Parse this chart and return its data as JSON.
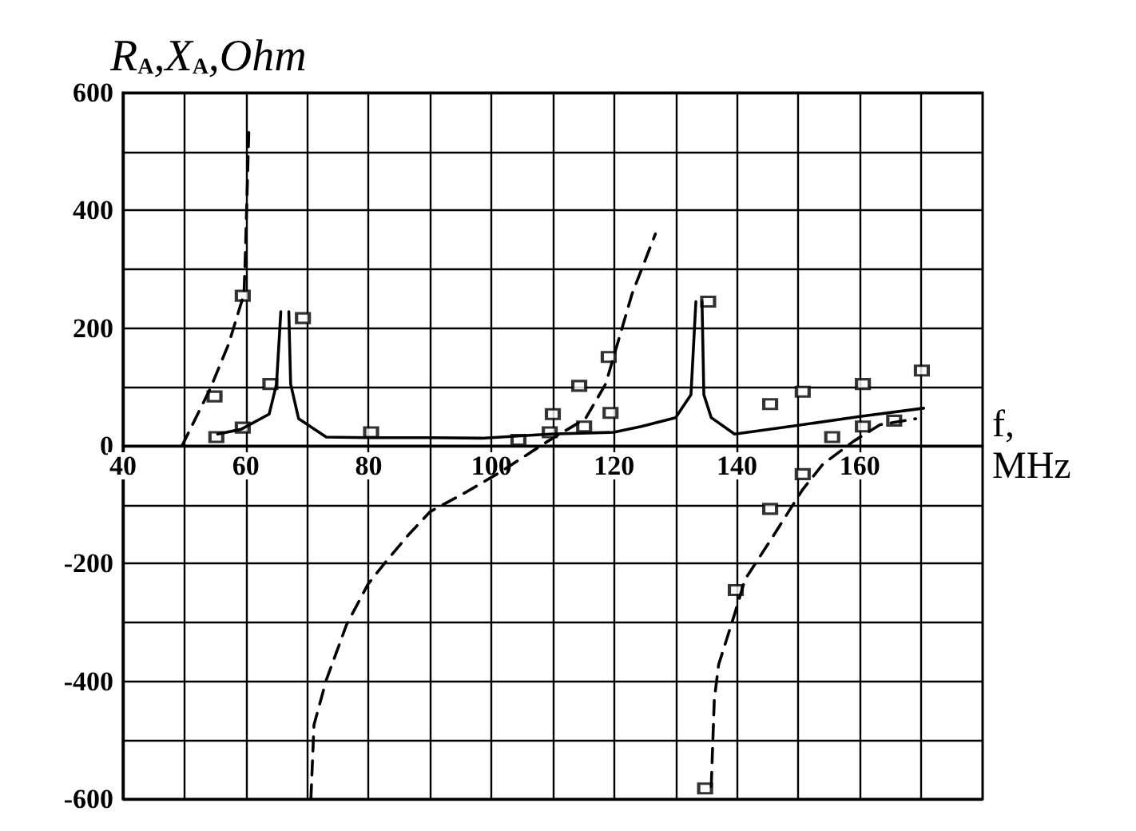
{
  "chart_data": {
    "type": "line",
    "xlabel": "f, MHz",
    "ylabel": "R$_{A}$,X$_{A}$,Ohm",
    "xlim": [
      40,
      180
    ],
    "xticks": [
      40,
      {
        "value": 50,
        "label": null
      },
      60,
      {
        "value": 70,
        "label": null
      },
      80,
      {
        "value": 90,
        "label": null
      },
      100,
      {
        "value": 110,
        "label": null
      },
      120,
      {
        "value": 130,
        "label": null
      },
      140,
      {
        "value": 150,
        "label": null
      },
      160,
      {
        "value": 170,
        "label": null
      }
    ],
    "ylim": [
      -600,
      600
    ],
    "yticks": [
      -600,
      {
        "value": -500,
        "label": null
      },
      -400,
      {
        "value": -300,
        "label": null
      },
      -200,
      {
        "value": -100,
        "label": null
      },
      0,
      {
        "value": 100,
        "label": null
      },
      200,
      {
        "value": 300,
        "label": null
      },
      400,
      {
        "value": 500,
        "label": null
      },
      600
    ],
    "grid": true,
    "series": [
      {
        "type": "line",
        "color": "#000000",
        "line_style": "solid",
        "marker": "none",
        "x": [
          55.4,
          59.2,
          63.8,
          65.0,
          65.7,
          66.3,
          67.0,
          67.3,
          68.6,
          73.1,
          80,
          90,
          98.4,
          109.5,
          119.9,
          124.4,
          130.0,
          132.5,
          133.3,
          133.8,
          134.3,
          134.6,
          135.8,
          139.6,
          150,
          160,
          170.4
        ],
        "values": [
          20,
          28,
          54,
          105,
          228,
          null,
          228,
          105,
          46,
          15,
          14,
          14,
          13,
          20,
          23,
          33,
          48,
          87,
          245,
          null,
          245,
          87,
          48,
          20,
          35,
          50,
          64
        ]
      },
      {
        "type": "line",
        "color": "#000000",
        "line_style": "dashed",
        "marker": "none",
        "x": [
          49.6,
          54.2,
          57.2,
          59.7,
          59.9,
          60.5,
          65.0,
          70.6,
          71.1,
          73.1,
          76.4,
          79.9,
          82.4,
          86.5,
          90.0,
          95.8,
          100.9,
          109.2,
          115.3,
          118.6,
          119.9,
          122.9,
          126.7,
          131.0,
          135.8,
          136.3,
          137.0,
          139.6,
          141.3,
          145.6,
          150.7,
          154.0,
          159.0,
          163.3,
          169.1
        ],
        "values": [
          0,
          97,
          173,
          258,
          317,
          538,
          null,
          -600,
          -474,
          -398,
          -304,
          -235,
          -202,
          -151,
          -112,
          -79,
          -48,
          8,
          46,
          105,
          151,
          258,
          360,
          null,
          -579,
          -431,
          -372,
          -286,
          -227,
          -158,
          -74,
          -31,
          8,
          36,
          46
        ]
      },
      {
        "type": "scatter",
        "color": "#000000",
        "marker": "square",
        "x": [
          55.2,
          59.5,
          54.9,
          59.5,
          64.0,
          69.3,
          80.4,
          104.4,
          110.0,
          109.5,
          114.3,
          115.1,
          119.1,
          119.4,
          135.3,
          145.4,
          150.7,
          160.5,
          170.1,
          155.5,
          160.5,
          165.6,
          150.7,
          145.4,
          139.8,
          134.8
        ],
        "values": [
          15,
          31,
          84,
          255,
          105,
          217,
          23,
          10,
          54,
          23,
          102,
          33,
          151,
          56,
          245,
          71,
          92,
          105,
          128,
          15,
          33,
          43,
          -48,
          -107,
          -245,
          -582
        ]
      }
    ]
  }
}
